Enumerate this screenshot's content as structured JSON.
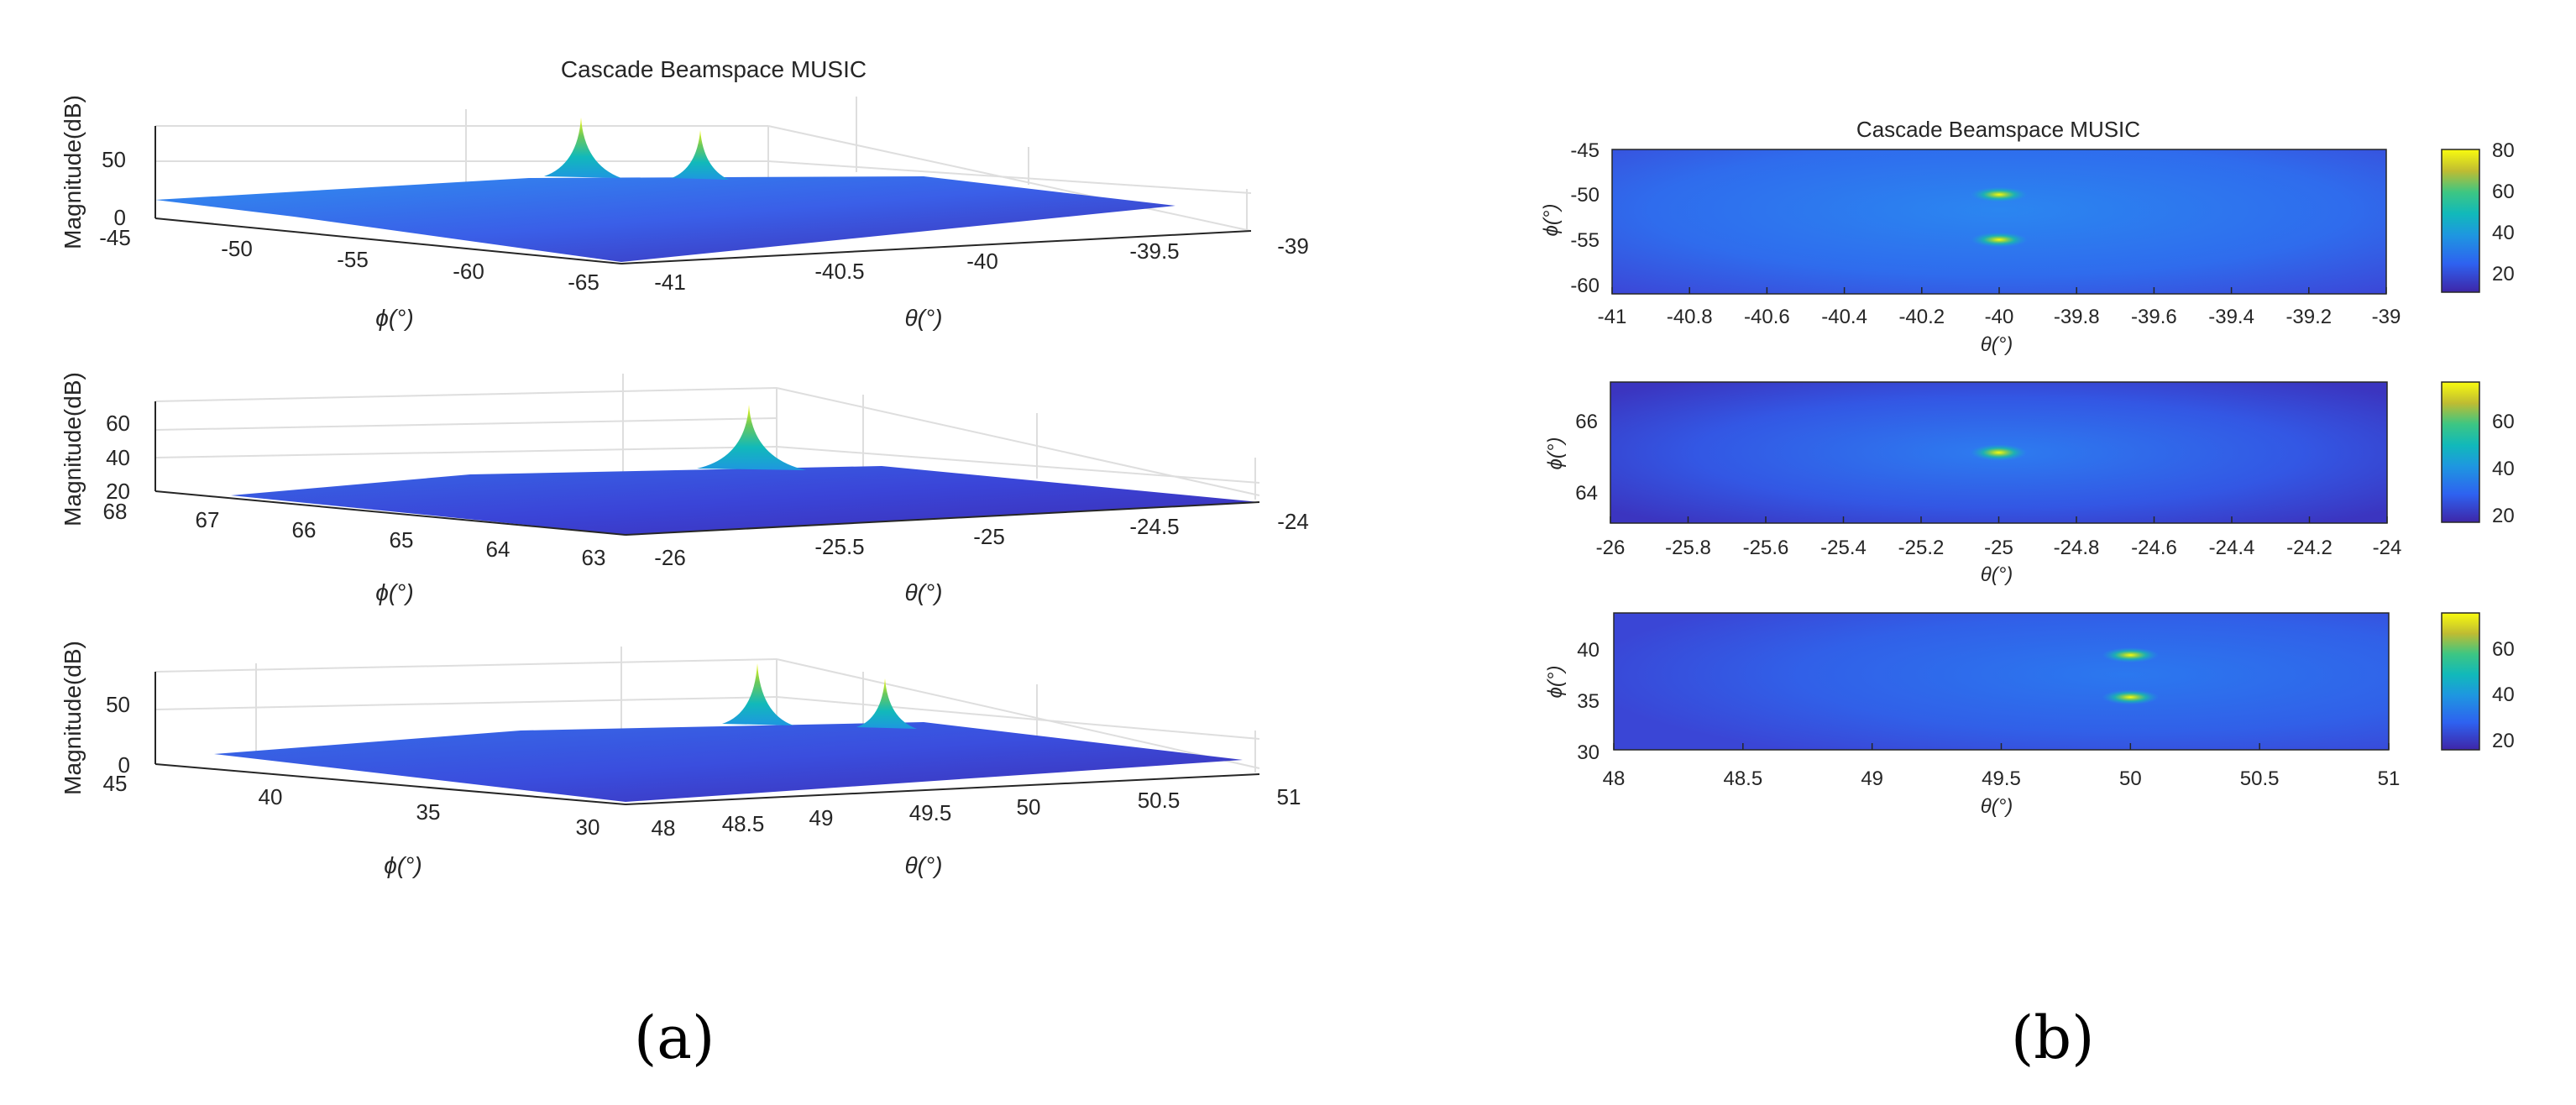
{
  "panels": {
    "a": "(a)",
    "b": "(b)"
  },
  "chart_data": [
    {
      "id": "a1",
      "type": "surface",
      "title": "Cascade Beamspace MUSIC",
      "xlabel": "θ(°)",
      "ylabel": "ϕ(°)",
      "zlabel": "Magnitude(dB)",
      "xticks": [
        "-41",
        "-40.5",
        "-40",
        "-39.5",
        "-39"
      ],
      "yticks": [
        "-45",
        "-50",
        "-55",
        "-60",
        "-65"
      ],
      "zticks": [
        "0",
        "50"
      ],
      "xlim": [
        -41,
        -39
      ],
      "ylim": [
        -65,
        -45
      ],
      "zlim": [
        0,
        80
      ],
      "peaks": [
        {
          "theta": -40,
          "phi": -50,
          "magnitude": 80
        },
        {
          "theta": -40,
          "phi": -55,
          "magnitude": 68
        }
      ],
      "floor_db": 15
    },
    {
      "id": "a2",
      "type": "surface",
      "title": "",
      "xlabel": "θ(°)",
      "ylabel": "ϕ(°)",
      "zlabel": "Magnitude(dB)",
      "xticks": [
        "-26",
        "-25.5",
        "-25",
        "-24.5",
        "-24"
      ],
      "yticks": [
        "68",
        "67",
        "66",
        "65",
        "64",
        "63"
      ],
      "zticks": [
        "20",
        "40",
        "60"
      ],
      "xlim": [
        -26,
        -24
      ],
      "ylim": [
        63,
        68
      ],
      "zlim": [
        20,
        75
      ],
      "peaks": [
        {
          "theta": -25,
          "phi": 65,
          "magnitude": 75
        }
      ],
      "floor_db": 20
    },
    {
      "id": "a3",
      "type": "surface",
      "title": "",
      "xlabel": "θ(°)",
      "ylabel": "ϕ(°)",
      "zlabel": "Magnitude(dB)",
      "xticks": [
        "48",
        "48.5",
        "49",
        "49.5",
        "50",
        "50.5",
        "51"
      ],
      "yticks": [
        "45",
        "40",
        "35",
        "30"
      ],
      "zticks": [
        "0",
        "50"
      ],
      "xlim": [
        48,
        51
      ],
      "ylim": [
        30,
        45
      ],
      "zlim": [
        0,
        75
      ],
      "peaks": [
        {
          "theta": 49.5,
          "phi": 40,
          "magnitude": 75
        },
        {
          "theta": 50,
          "phi": 35,
          "magnitude": 65
        }
      ],
      "floor_db": 15
    },
    {
      "id": "b1",
      "type": "heatmap",
      "title": "Cascade Beamspace MUSIC",
      "xlabel": "θ(°)",
      "ylabel": "ϕ(°)",
      "xticks": [
        "-41",
        "-40.8",
        "-40.6",
        "-40.4",
        "-40.2",
        "-40",
        "-39.8",
        "-39.6",
        "-39.4",
        "-39.2",
        "-39"
      ],
      "yticks": [
        "-45",
        "-50",
        "-55",
        "-60"
      ],
      "xlim": [
        -41,
        -39
      ],
      "ylim": [
        -61,
        -45
      ],
      "colorbar_ticks": [
        "80",
        "60",
        "40",
        "20"
      ],
      "clim": [
        10,
        80
      ],
      "peaks": [
        {
          "theta": -40,
          "phi": -50
        },
        {
          "theta": -40,
          "phi": -55
        }
      ]
    },
    {
      "id": "b2",
      "type": "heatmap",
      "title": "",
      "xlabel": "θ(°)",
      "ylabel": "ϕ(°)",
      "xticks": [
        "-26",
        "-25.8",
        "-25.6",
        "-25.4",
        "-25.2",
        "-25",
        "-24.8",
        "-24.6",
        "-24.4",
        "-24.2",
        "-24"
      ],
      "yticks": [
        "66",
        "64"
      ],
      "xlim": [
        -26,
        -24
      ],
      "ylim": [
        63,
        67
      ],
      "colorbar_ticks": [
        "60",
        "40",
        "20"
      ],
      "clim": [
        15,
        75
      ],
      "peaks": [
        {
          "theta": -25,
          "phi": 65
        }
      ]
    },
    {
      "id": "b3",
      "type": "heatmap",
      "title": "",
      "xlabel": "θ(°)",
      "ylabel": "ϕ(°)",
      "xticks": [
        "48",
        "48.5",
        "49",
        "49.5",
        "50",
        "50.5",
        "51"
      ],
      "yticks": [
        "40",
        "35",
        "30"
      ],
      "xlim": [
        48,
        51
      ],
      "ylim": [
        30,
        43
      ],
      "colorbar_ticks": [
        "60",
        "40",
        "20"
      ],
      "clim": [
        15,
        75
      ],
      "peaks": [
        {
          "theta": 50,
          "phi": 39
        },
        {
          "theta": 50,
          "phi": 35
        }
      ]
    }
  ]
}
